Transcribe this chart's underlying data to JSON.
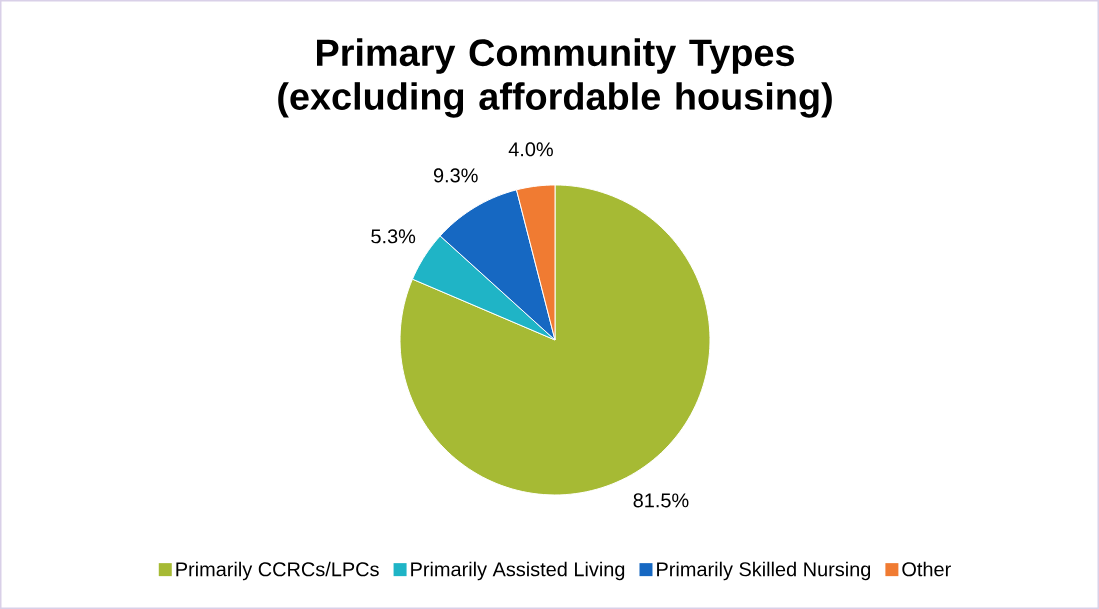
{
  "chart_data": {
    "type": "pie",
    "title": "Primary Community Types (excluding affordable housing)",
    "categories": [
      "Primarily CCRCs/LPCs",
      "Primarily Assisted Living",
      "Primarily Skilled Nursing",
      "Other"
    ],
    "values": [
      81.5,
      5.3,
      9.3,
      4.0
    ],
    "value_labels": [
      "81.5%",
      "5.3%",
      "9.3%",
      "4.0%"
    ],
    "colors": [
      "#a6ba34",
      "#1fb4c6",
      "#1668c2",
      "#f07b32"
    ],
    "legend": "bottom"
  }
}
